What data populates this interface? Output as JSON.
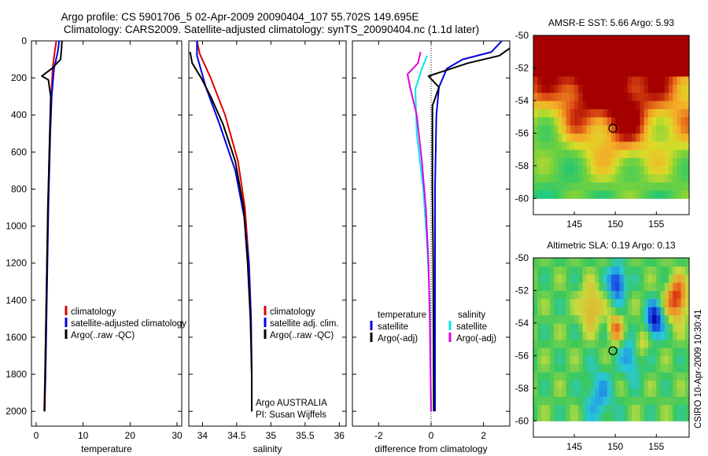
{
  "header": {
    "title_line1": "Argo profile: CS 5901706_5 02-Apr-2009 20090404_107 55.702S 149.695E",
    "title_line2": "Climatology: CARS2009. Satellite-adjusted climatology: synTS_20090404.nc (1.1d later)"
  },
  "side_stamp": "CSIRO 10-Apr-2009 10:30:41",
  "colors": {
    "climatology": "#e00000",
    "satellite": "#0000e0",
    "argo": "#000000",
    "sat_salinity": "#00e8e8",
    "argo_adj_salinity": "#e000e0"
  },
  "chart_data": [
    {
      "type": "line",
      "xlabel": "temperature",
      "xlim": [
        -1,
        31
      ],
      "xticks": [
        0,
        10,
        20,
        30
      ],
      "ylim": [
        2080,
        0
      ],
      "yticks": [
        0,
        200,
        400,
        600,
        800,
        1000,
        1200,
        1400,
        1600,
        1800,
        2000
      ],
      "legend": [
        "climatology",
        "satellite-adjusted climatology",
        "Argo(..raw -QC)"
      ],
      "series": [
        {
          "name": "climatology",
          "color": "#e00000",
          "points": [
            [
              4.3,
              0
            ],
            [
              4,
              50
            ],
            [
              3.5,
              150
            ],
            [
              3.2,
              300
            ],
            [
              2.9,
              500
            ],
            [
              2.7,
              700
            ],
            [
              2.5,
              900
            ],
            [
              2.3,
              1200
            ],
            [
              2.1,
              1500
            ],
            [
              1.9,
              1800
            ],
            [
              1.7,
              2000
            ]
          ]
        },
        {
          "name": "satellite-adjusted climatology",
          "color": "#0000e0",
          "points": [
            [
              4.9,
              0
            ],
            [
              4.6,
              60
            ],
            [
              3.8,
              150
            ],
            [
              3.3,
              300
            ],
            [
              3,
              500
            ],
            [
              2.8,
              700
            ],
            [
              2.6,
              900
            ],
            [
              2.4,
              1200
            ],
            [
              2.2,
              1500
            ],
            [
              2,
              1800
            ],
            [
              1.8,
              2000
            ]
          ]
        },
        {
          "name": "Argo(..raw -QC)",
          "color": "#000000",
          "points": [
            [
              5.5,
              0
            ],
            [
              5.4,
              40
            ],
            [
              5.2,
              100
            ],
            [
              3.3,
              150
            ],
            [
              1.2,
              190
            ],
            [
              2.6,
              210
            ],
            [
              3.1,
              300
            ],
            [
              2.9,
              500
            ],
            [
              2.7,
              700
            ],
            [
              2.5,
              900
            ],
            [
              2.3,
              1200
            ],
            [
              2.1,
              1500
            ],
            [
              1.9,
              1800
            ],
            [
              1.8,
              2000
            ]
          ]
        }
      ]
    },
    {
      "type": "line",
      "xlabel": "salinity",
      "xlim": [
        33.8,
        36.1
      ],
      "xticks": [
        34,
        34.5,
        35,
        35.5,
        36
      ],
      "ylim": [
        2080,
        0
      ],
      "legend": [
        "climatology",
        "satellite adj. clim.",
        "Argo(..raw -QC)"
      ],
      "annotations": [
        "Argo AUSTRALIA",
        "PI: Susan Wijffels"
      ],
      "series": [
        {
          "name": "climatology",
          "color": "#e00000",
          "points": [
            [
              33.92,
              0
            ],
            [
              33.96,
              70
            ],
            [
              34.12,
              200
            ],
            [
              34.33,
              400
            ],
            [
              34.52,
              650
            ],
            [
              34.62,
              900
            ],
            [
              34.68,
              1200
            ],
            [
              34.71,
              1500
            ],
            [
              34.72,
              1800
            ],
            [
              34.72,
              2000
            ]
          ]
        },
        {
          "name": "satellite adj. clim.",
          "color": "#0000e0",
          "points": [
            [
              33.92,
              0
            ],
            [
              33.92,
              80
            ],
            [
              34.05,
              250
            ],
            [
              34.25,
              450
            ],
            [
              34.48,
              700
            ],
            [
              34.61,
              950
            ],
            [
              34.68,
              1200
            ],
            [
              34.71,
              1500
            ],
            [
              34.72,
              1800
            ],
            [
              34.72,
              2000
            ]
          ]
        },
        {
          "name": "Argo(..raw -QC)",
          "color": "#000000",
          "points": [
            [
              33.82,
              60
            ],
            [
              33.85,
              120
            ],
            [
              33.98,
              200
            ],
            [
              34.12,
              300
            ],
            [
              34.3,
              450
            ],
            [
              34.48,
              650
            ],
            [
              34.6,
              900
            ],
            [
              34.66,
              1200
            ],
            [
              34.7,
              1500
            ],
            [
              34.72,
              1800
            ],
            [
              34.72,
              2000
            ]
          ]
        }
      ]
    },
    {
      "type": "line",
      "xlabel": "difference from climatology",
      "xlim": [
        -3,
        3
      ],
      "xticks": [
        -2,
        0,
        2
      ],
      "ylim": [
        2080,
        0
      ],
      "legend": [
        "temperature",
        "satellite",
        "Argo(-adj)",
        "salinity",
        "satellite",
        "Argo(-adj)"
      ],
      "series": [
        {
          "name": "temperature satellite",
          "color": "#0000e0",
          "points": [
            [
              2.7,
              0
            ],
            [
              2.3,
              60
            ],
            [
              1.2,
              100
            ],
            [
              0.6,
              150
            ],
            [
              0.3,
              250
            ],
            [
              0.2,
              400
            ],
            [
              0.15,
              800
            ],
            [
              0.15,
              1200
            ],
            [
              0.15,
              2000
            ]
          ]
        },
        {
          "name": "temperature Argo(-adj)",
          "color": "#000000",
          "points": [
            [
              3,
              40
            ],
            [
              2.6,
              80
            ],
            [
              1.4,
              120
            ],
            [
              -0.1,
              190
            ],
            [
              0.3,
              250
            ],
            [
              0.05,
              350
            ],
            [
              0.05,
              800
            ],
            [
              0.08,
              1200
            ],
            [
              0.1,
              2000
            ]
          ]
        },
        {
          "name": "salinity satellite",
          "color": "#00e8e8",
          "points": [
            [
              -0.15,
              80
            ],
            [
              -0.35,
              150
            ],
            [
              -0.6,
              260
            ],
            [
              -0.55,
              500
            ],
            [
              -0.3,
              800
            ],
            [
              -0.15,
              1100
            ],
            [
              -0.05,
              1400
            ],
            [
              0,
              2000
            ]
          ]
        },
        {
          "name": "salinity Argo(-adj)",
          "color": "#e000e0",
          "points": [
            [
              -0.4,
              60
            ],
            [
              -0.5,
              120
            ],
            [
              -0.9,
              180
            ],
            [
              -0.8,
              250
            ],
            [
              -0.55,
              400
            ],
            [
              -0.35,
              650
            ],
            [
              -0.2,
              900
            ],
            [
              -0.1,
              1200
            ],
            [
              -0.05,
              1500
            ],
            [
              0,
              2000
            ]
          ]
        }
      ]
    },
    {
      "type": "heatmap",
      "title": "AMSR-E SST: 5.66 Argo: 5.93",
      "xlim": [
        140,
        159
      ],
      "xticks": [
        145,
        150,
        155
      ],
      "ylim": [
        -61,
        -50
      ],
      "yticks": [
        -50,
        -52,
        -54,
        -56,
        -58,
        -60
      ],
      "marker": [
        149.7,
        -55.7
      ]
    },
    {
      "type": "heatmap",
      "title": "Altimetric SLA: 0.19 Argo: 0.13",
      "xlim": [
        140,
        159
      ],
      "xticks": [
        145,
        150,
        155
      ],
      "ylim": [
        -61,
        -50
      ],
      "yticks": [
        -50,
        -52,
        -54,
        -56,
        -58,
        -60
      ],
      "marker": [
        149.7,
        -55.7
      ]
    }
  ]
}
